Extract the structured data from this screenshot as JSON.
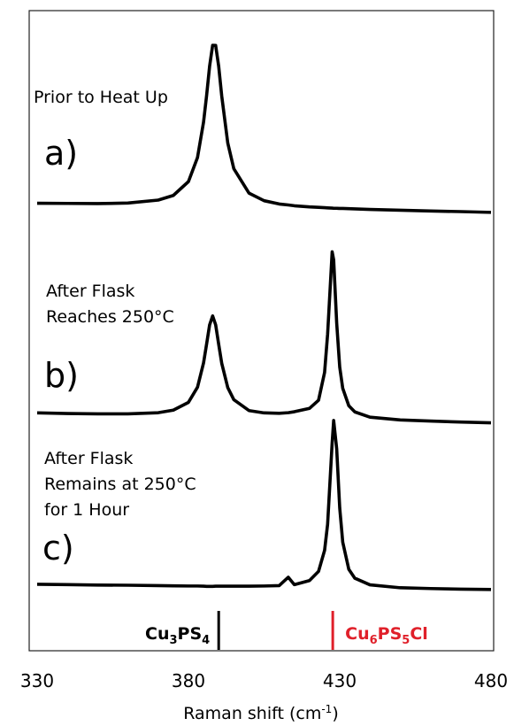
{
  "chart_data": {
    "type": "line",
    "x": [
      330,
      340,
      350,
      360,
      370,
      375,
      380,
      383,
      385,
      386,
      387,
      388,
      389,
      390,
      391,
      393,
      395,
      400,
      405,
      410,
      413,
      415,
      420,
      423,
      425,
      426,
      427.5,
      428,
      429,
      430,
      431,
      433,
      435,
      440,
      450,
      460,
      470,
      480
    ],
    "series": [
      {
        "label": "a)",
        "annotation": [
          "Prior to Heat Up"
        ],
        "color": "#000000",
        "values": [
          9.3,
          9.2,
          9.1,
          9.4,
          10.9,
          13.3,
          20.4,
          32.8,
          51.0,
          64.5,
          79.7,
          90.4,
          90.3,
          79.6,
          64.4,
          40.2,
          27.0,
          14.5,
          10.6,
          8.9,
          8.4,
          8.0,
          7.4,
          7.2,
          7.0,
          6.9,
          6.8,
          6.7,
          6.7,
          6.6,
          6.6,
          6.5,
          6.4,
          6.1,
          5.7,
          5.3,
          5.0,
          4.6
        ]
      },
      {
        "label": "b)",
        "annotation": [
          "After Flask",
          "Reaches 250°C"
        ],
        "color": "#000000",
        "values": [
          6.2,
          5.9,
          5.7,
          5.7,
          6.3,
          7.6,
          11.6,
          19.4,
          31.9,
          41.5,
          51.4,
          56.0,
          51.4,
          41.4,
          31.7,
          19.2,
          13.0,
          7.4,
          6.2,
          6.0,
          6.3,
          6.8,
          8.5,
          12.7,
          27.0,
          46.6,
          88.9,
          84.8,
          52.3,
          29.7,
          18.8,
          9.9,
          6.7,
          4.0,
          2.6,
          2.0,
          1.5,
          1.1
        ]
      },
      {
        "label": "c)",
        "annotation": [
          "After Flask",
          "Remains at 250°C",
          "for 1 Hour"
        ],
        "color": "#000000",
        "values": [
          5.5,
          5.3,
          5.1,
          5.0,
          4.8,
          4.7,
          4.6,
          4.6,
          4.5,
          4.4,
          4.4,
          4.4,
          4.5,
          4.5,
          4.5,
          4.5,
          4.5,
          4.5,
          4.6,
          4.8,
          9.1,
          5.3,
          7.4,
          12.1,
          22.9,
          36.3,
          78.1,
          89.6,
          75.0,
          44.7,
          27.1,
          13.2,
          8.6,
          5.2,
          3.7,
          3.3,
          3.0,
          2.8
        ]
      }
    ],
    "ylim": [
      0,
      100
    ],
    "xlim": [
      330,
      480
    ],
    "xticks": [
      330,
      380,
      430,
      480
    ],
    "xlabel": [
      "Raman shift (cm",
      "-1",
      ")"
    ],
    "reference_lines": [
      {
        "x": 390,
        "label": [
          "Cu",
          "3",
          "PS",
          "4"
        ],
        "color": "#000000"
      },
      {
        "x": 427.7,
        "label": [
          "Cu",
          "6",
          "PS",
          "5",
          "Cl"
        ],
        "color": "#e0202a"
      }
    ]
  }
}
